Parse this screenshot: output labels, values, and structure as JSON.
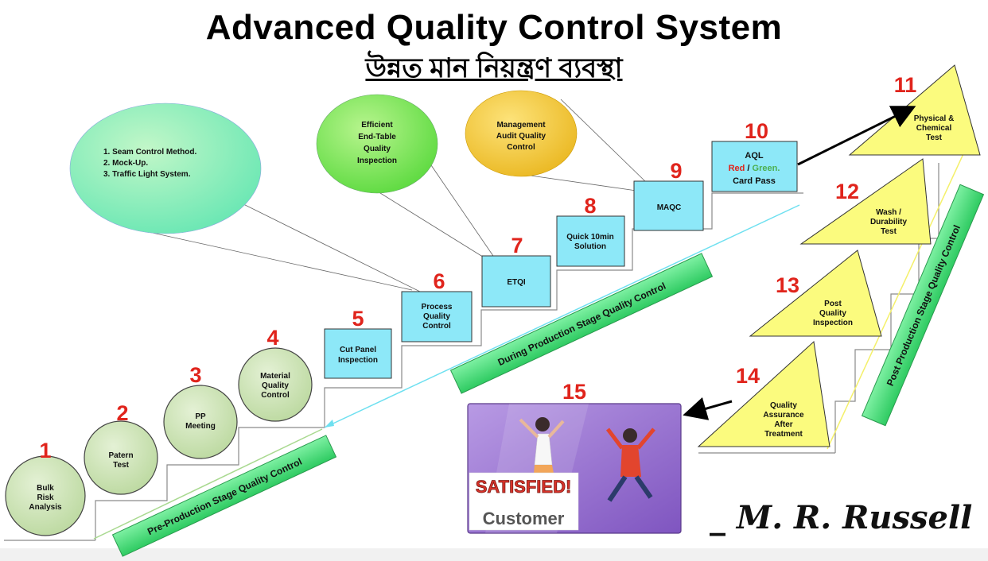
{
  "title": "Advanced Quality Control System",
  "subtitle": "উন্নত মান নিয়ন্ত্রণ ব্যবস্থা",
  "signature": "_ M. R. Russell",
  "callouts": {
    "methods": [
      "1. Seam Control Method.",
      "2. Mock-Up.",
      "3. Traffic Light System."
    ],
    "end_table": [
      "Efficient",
      "End-Table",
      "Quality",
      "Inspection"
    ],
    "management": [
      "Management",
      "Audit Quality",
      "Control"
    ]
  },
  "steps": [
    {
      "num": "1",
      "lines": [
        "Bulk",
        "Risk",
        "Analysis"
      ]
    },
    {
      "num": "2",
      "lines": [
        "Patern",
        "Test"
      ]
    },
    {
      "num": "3",
      "lines": [
        "PP",
        "Meeting"
      ]
    },
    {
      "num": "4",
      "lines": [
        "Material",
        "Quality",
        "Control"
      ]
    },
    {
      "num": "5",
      "lines": [
        "Cut Panel",
        "Inspection"
      ]
    },
    {
      "num": "6",
      "lines": [
        "Process",
        "Quality",
        "Control"
      ]
    },
    {
      "num": "7",
      "lines": [
        "ETQI"
      ]
    },
    {
      "num": "8",
      "lines": [
        "Quick 10min",
        "Solution"
      ]
    },
    {
      "num": "9",
      "lines": [
        "MAQC"
      ]
    },
    {
      "num": "10",
      "lines": [
        "AQL",
        "Card Pass"
      ],
      "red_word": "Red",
      "sep": " / ",
      "green_word": "Green."
    },
    {
      "num": "11",
      "lines": [
        "Physical &",
        "Chemical",
        "Test"
      ]
    },
    {
      "num": "12",
      "lines": [
        "Wash /",
        "Durability",
        "Test"
      ]
    },
    {
      "num": "13",
      "lines": [
        "Post",
        "Quality",
        "Inspection"
      ]
    },
    {
      "num": "14",
      "lines": [
        "Quality",
        "Assurance",
        "After",
        "Treatment"
      ]
    },
    {
      "num": "15",
      "lines": []
    }
  ],
  "bands": {
    "pre": "Pre-Production  Stage Quality  Control",
    "during": "During  Production  Stage Quality  Control",
    "post": "Post Production Stage Quality Control"
  },
  "customer": {
    "stamp": "SATISFIED!",
    "label": "Customer"
  },
  "colors": {
    "circle_green": "#cbe1b3",
    "square_cyan": "#8de8f8",
    "triangle_yellow": "#fbfb7e",
    "band_green": "#44e17e",
    "number_red": "#e0241c",
    "aql_red": "#e0241c",
    "aql_green": "#4caf50",
    "customer_purple": "#9a6fd0"
  }
}
